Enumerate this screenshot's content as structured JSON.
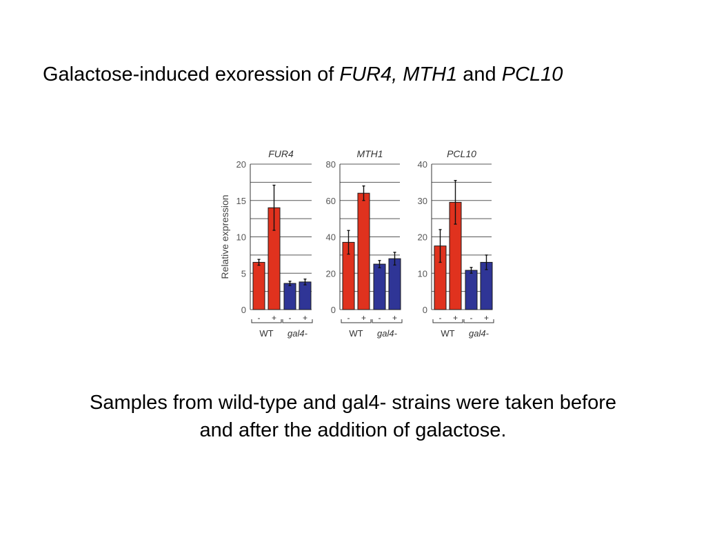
{
  "slide": {
    "title_parts": [
      "Galactose-induced exoression of ",
      "FUR4, MTH1",
      " and ",
      "PCL10"
    ],
    "caption_lines": [
      "Samples from wild-type and gal4- strains were taken before",
      "and after the addition of galactose."
    ]
  },
  "chart_data": [
    {
      "type": "bar",
      "title": "FUR4",
      "ylabel": "Relative expression",
      "ylim": [
        0,
        20
      ],
      "yticks": [
        0,
        5,
        10,
        15,
        20
      ],
      "categories": [
        "-",
        "+",
        "-",
        "+"
      ],
      "groups": [
        "WT",
        "gal4-"
      ],
      "values": [
        6.5,
        14,
        3.6,
        3.8
      ],
      "errors": [
        0.4,
        3.1,
        0.3,
        0.4
      ],
      "colors": [
        "#e0321e",
        "#e0321e",
        "#2f3596",
        "#2f3596"
      ],
      "grid": true
    },
    {
      "type": "bar",
      "title": "MTH1",
      "ylabel": "",
      "ylim": [
        0,
        80
      ],
      "yticks": [
        0,
        20,
        40,
        60,
        80
      ],
      "categories": [
        "-",
        "+",
        "-",
        "+"
      ],
      "groups": [
        "WT",
        "gal4-"
      ],
      "values": [
        37,
        64,
        25,
        28
      ],
      "errors": [
        6.5,
        4,
        2,
        3.5
      ],
      "colors": [
        "#e0321e",
        "#e0321e",
        "#2f3596",
        "#2f3596"
      ],
      "grid": true
    },
    {
      "type": "bar",
      "title": "PCL10",
      "ylabel": "",
      "ylim": [
        0,
        40
      ],
      "yticks": [
        0,
        10,
        20,
        30,
        40
      ],
      "categories": [
        "-",
        "+",
        "-",
        "+"
      ],
      "groups": [
        "WT",
        "gal4-"
      ],
      "values": [
        17.5,
        29.5,
        10.8,
        13
      ],
      "errors": [
        4.5,
        6,
        0.8,
        2
      ],
      "colors": [
        "#e0321e",
        "#e0321e",
        "#2f3596",
        "#2f3596"
      ],
      "grid": true
    }
  ]
}
